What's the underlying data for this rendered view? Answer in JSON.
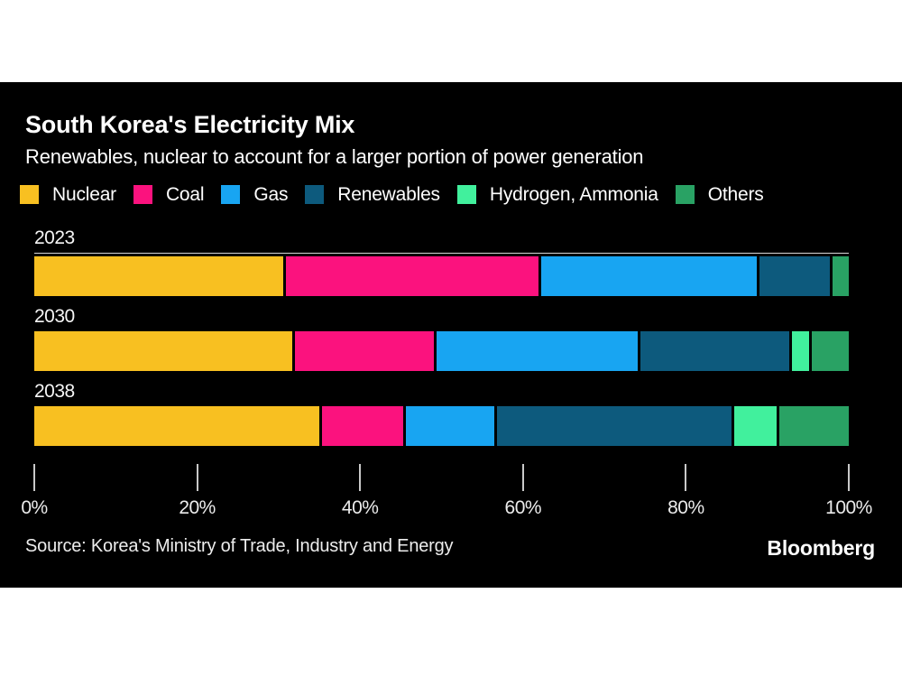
{
  "page": {
    "background": "#FFFFFF",
    "card_background": "#000000"
  },
  "chart_data": {
    "type": "bar",
    "orientation": "horizontal",
    "stacked": true,
    "unit": "%",
    "title": "South Korea's Electricity Mix",
    "subtitle": "Renewables, nuclear to account for a larger portion of power generation",
    "categories": [
      "2023",
      "2030",
      "2038"
    ],
    "series": [
      {
        "name": "Nuclear",
        "color": "#F8C021",
        "values": [
          30.7,
          31.8,
          35.2
        ]
      },
      {
        "name": "Coal",
        "color": "#FB127E",
        "values": [
          31.4,
          17.4,
          10.3
        ]
      },
      {
        "name": "Gas",
        "color": "#18A5F2",
        "values": [
          26.8,
          25.1,
          11.1
        ]
      },
      {
        "name": "Renewables",
        "color": "#0D5A7D",
        "values": [
          8.9,
          18.6,
          29.2
        ]
      },
      {
        "name": "Hydrogen, Ammonia",
        "color": "#41F09D",
        "values": [
          0,
          2.4,
          5.5
        ]
      },
      {
        "name": "Others",
        "color": "#29A264",
        "values": [
          2.2,
          4.7,
          8.7
        ]
      }
    ],
    "x_ticks": [
      "0%",
      "20%",
      "40%",
      "60%",
      "80%",
      "100%"
    ],
    "xlim": [
      0,
      100
    ],
    "grid": false,
    "legend_position": "top",
    "axis_tick_color": "#C9C9C9"
  },
  "footer": {
    "source": "Source: Korea's Ministry of Trade, Industry and Energy",
    "brand": "Bloomberg"
  }
}
